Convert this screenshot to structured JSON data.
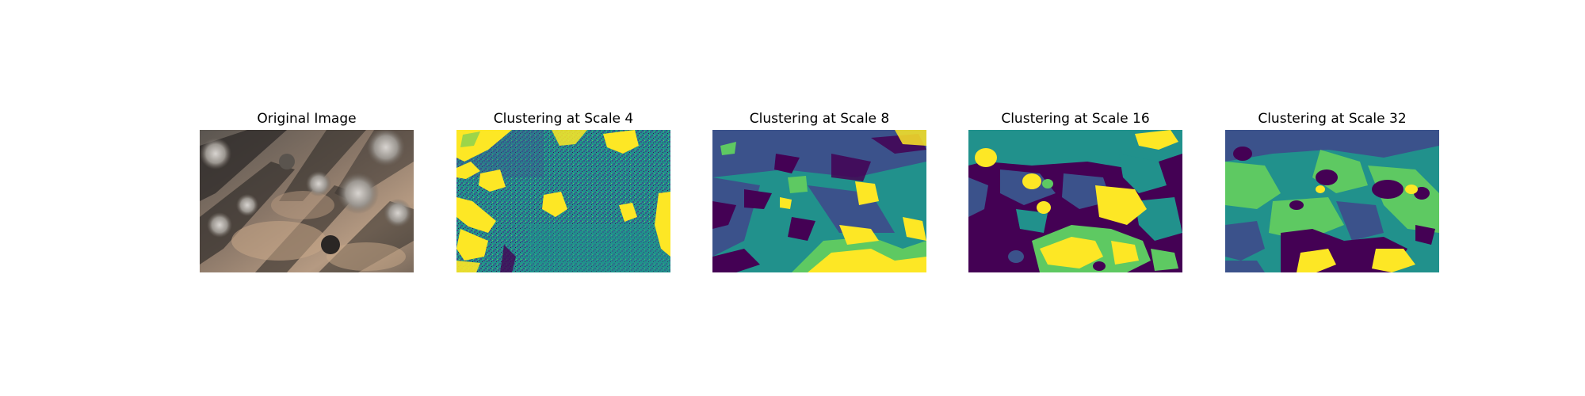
{
  "figure": {
    "panels": [
      {
        "title": "Original Image",
        "content": "aerial photograph of forest floor with tree shadows"
      },
      {
        "title": "Clustering at Scale 4",
        "content": "cluster label map"
      },
      {
        "title": "Clustering at Scale 8",
        "content": "cluster label map"
      },
      {
        "title": "Clustering at Scale 16",
        "content": "cluster label map"
      },
      {
        "title": "Clustering at Scale 32",
        "content": "cluster label map"
      }
    ],
    "palette": {
      "viridis_0": "#440154",
      "viridis_1": "#3b528b",
      "viridis_2": "#21918c",
      "viridis_3": "#5ec962",
      "viridis_4": "#fde725"
    }
  }
}
